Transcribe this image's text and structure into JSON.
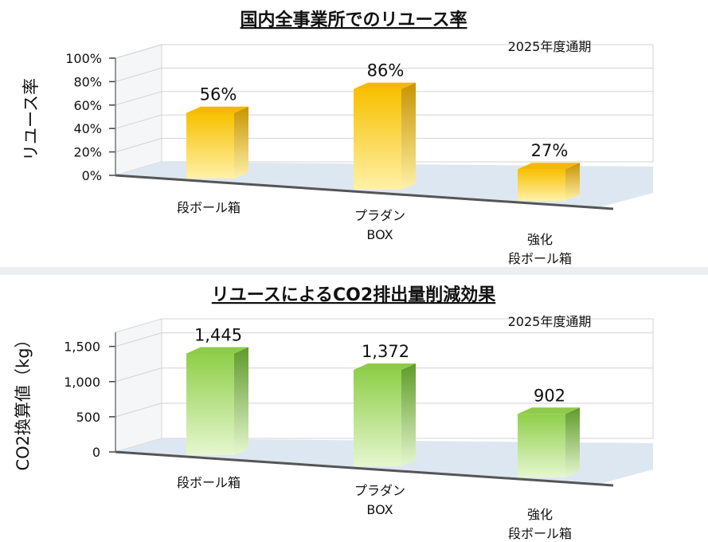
{
  "chart_data": [
    {
      "type": "bar",
      "title": "国内全事業所でのリユース率",
      "subtitle": "2025年度通期",
      "ylabel": "リユース率",
      "categories": [
        [
          "段ボール箱"
        ],
        [
          "プラダン",
          "BOX"
        ],
        [
          "強化",
          "段ボール箱"
        ]
      ],
      "values": [
        56,
        86,
        27
      ],
      "data_labels": [
        "56%",
        "86%",
        "27%"
      ],
      "yticks": [
        "0%",
        "20%",
        "40%",
        "60%",
        "80%",
        "100%"
      ],
      "ylim": [
        0,
        100
      ],
      "grid": true,
      "style": "3d-column",
      "colors": {
        "top": "#f5b800",
        "front_top": "#f7c000",
        "front_bottom": "#fff1a8",
        "side": "#c89400"
      }
    },
    {
      "type": "bar",
      "title": "リユースによるCO2排出量削減効果",
      "subtitle": "2025年度通期",
      "ylabel": "CO2換算値（kg）",
      "categories": [
        [
          "段ボール箱"
        ],
        [
          "プラダン",
          "BOX"
        ],
        [
          "強化",
          "段ボール箱"
        ]
      ],
      "values": [
        1445,
        1372,
        902
      ],
      "data_labels": [
        "1,445",
        "1,372",
        "902"
      ],
      "yticks": [
        "0",
        "500",
        "1,000",
        "1,500"
      ],
      "ylim": [
        0,
        1700
      ],
      "grid": true,
      "style": "3d-column",
      "colors": {
        "top": "#8fcb4a",
        "front_top": "#8fcf4a",
        "front_bottom": "#e6f6cf",
        "side": "#5f9a2a"
      }
    }
  ]
}
